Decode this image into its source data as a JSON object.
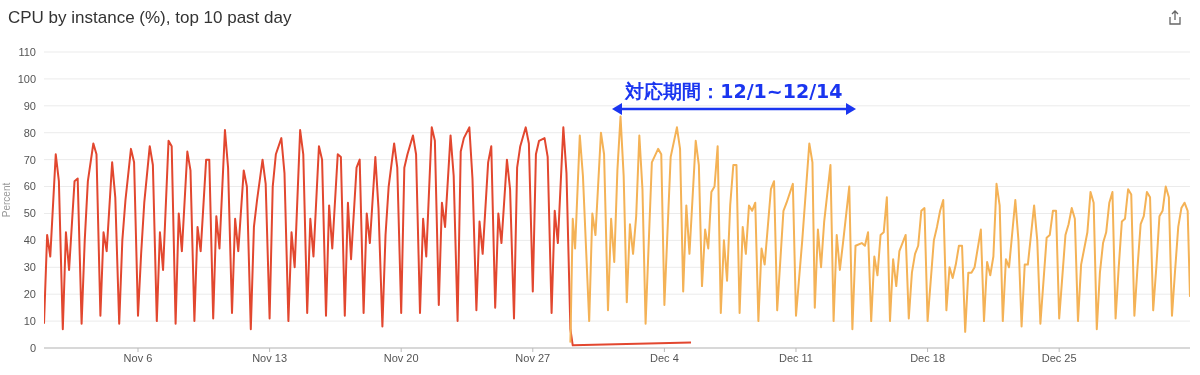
{
  "chart_data": {
    "type": "line",
    "title": "CPU by instance (%), top 10 past day",
    "ylabel": "Percent",
    "xlim": [
      "--11-01T00:00",
      "--12-31T23:00"
    ],
    "xticks": [
      {
        "value": "--11-06",
        "label": "Nov 6"
      },
      {
        "value": "--11-13",
        "label": "Nov 13"
      },
      {
        "value": "--11-20",
        "label": "Nov 20"
      },
      {
        "value": "--11-27",
        "label": "Nov 27"
      },
      {
        "value": "--12-04",
        "label": "Dec 4"
      },
      {
        "value": "--12-11",
        "label": "Dec 11"
      },
      {
        "value": "--12-18",
        "label": "Dec 18"
      },
      {
        "value": "--12-25",
        "label": "Dec 25"
      }
    ],
    "ylim": [
      0,
      110
    ],
    "yticks": [
      0,
      10,
      20,
      30,
      40,
      50,
      60,
      70,
      80,
      90,
      100,
      110
    ],
    "grid": "y",
    "marker": "none",
    "line_style": "solid",
    "annotations": [
      "対応期間：12/1~12/14"
    ],
    "series": [
      {
        "color": "#e2472f",
        "x": [
          "--11-01T00:00",
          "--11-01T04:00",
          "--11-01T08:00",
          "--11-01T15:00",
          "--11-01T19:00",
          "--11-02T00:00",
          "--11-02T04:00",
          "--11-02T08:00",
          "--11-02T15:00",
          "--11-02T19:00",
          "--11-03T00:00",
          "--11-03T04:00",
          "--11-03T08:00",
          "--11-03T15:00",
          "--11-03T19:00",
          "--11-04T00:00",
          "--11-04T04:00",
          "--11-04T08:00",
          "--11-04T15:00",
          "--11-04T19:00",
          "--11-05T00:00",
          "--11-05T04:00",
          "--11-05T08:00",
          "--11-05T15:00",
          "--11-05T19:00",
          "--11-06T00:00",
          "--11-06T04:00",
          "--11-06T08:00",
          "--11-06T15:00",
          "--11-06T19:00",
          "--11-07T00:00",
          "--11-07T04:00",
          "--11-07T08:00",
          "--11-07T15:00",
          "--11-07T19:00",
          "--11-08T00:00",
          "--11-08T04:00",
          "--11-08T08:00",
          "--11-08T15:00",
          "--11-08T19:00",
          "--11-09T00:00",
          "--11-09T04:00",
          "--11-09T08:00",
          "--11-09T15:00",
          "--11-09T19:00",
          "--11-10T00:00",
          "--11-10T04:00",
          "--11-10T08:00",
          "--11-10T15:00",
          "--11-10T19:00",
          "--11-11T00:00",
          "--11-11T04:00",
          "--11-11T08:00",
          "--11-11T15:00",
          "--11-11T19:00",
          "--11-12T00:00",
          "--11-12T04:00",
          "--11-12T08:00",
          "--11-12T15:00",
          "--11-12T19:00",
          "--11-13T00:00",
          "--11-13T04:00",
          "--11-13T08:00",
          "--11-13T15:00",
          "--11-13T19:00",
          "--11-14T00:00",
          "--11-14T04:00",
          "--11-14T08:00",
          "--11-14T15:00",
          "--11-14T19:00",
          "--11-15T00:00",
          "--11-15T04:00",
          "--11-15T08:00",
          "--11-15T15:00",
          "--11-15T19:00",
          "--11-16T00:00",
          "--11-16T04:00",
          "--11-16T08:00",
          "--11-16T15:00",
          "--11-16T19:00",
          "--11-17T00:00",
          "--11-17T04:00",
          "--11-17T08:00",
          "--11-17T15:00",
          "--11-17T19:00",
          "--11-18T00:00",
          "--11-18T04:00",
          "--11-18T08:00",
          "--11-18T15:00",
          "--11-18T19:00",
          "--11-19T00:00",
          "--11-19T04:00",
          "--11-19T08:00",
          "--11-19T15:00",
          "--11-19T19:00",
          "--11-20T00:00",
          "--11-20T04:00",
          "--11-20T08:00",
          "--11-20T15:00",
          "--11-20T19:00",
          "--11-21T00:00",
          "--11-21T04:00",
          "--11-21T08:00",
          "--11-21T15:00",
          "--11-21T19:00",
          "--11-22T00:00",
          "--11-22T04:00",
          "--11-22T08:00",
          "--11-22T15:00",
          "--11-22T19:00",
          "--11-23T00:00",
          "--11-23T04:00",
          "--11-23T08:00",
          "--11-23T15:00",
          "--11-23T19:00",
          "--11-24T00:00",
          "--11-24T04:00",
          "--11-24T08:00",
          "--11-24T15:00",
          "--11-24T19:00",
          "--11-25T00:00",
          "--11-25T04:00",
          "--11-25T08:00",
          "--11-25T15:00",
          "--11-25T19:00",
          "--11-26T00:00",
          "--11-26T04:00",
          "--11-26T08:00",
          "--11-26T15:00",
          "--11-26T19:00",
          "--11-27T00:00",
          "--11-27T04:00",
          "--11-27T08:00",
          "--11-27T15:00",
          "--11-27T19:00",
          "--11-28T00:00",
          "--11-28T04:00",
          "--11-28T08:00",
          "--11-28T15:00",
          "--11-28T19:00",
          "--11-29T00:00",
          "--11-29T03:00",
          "--12-05T10:00"
        ],
        "values": [
          9,
          42,
          34,
          72,
          62,
          7,
          43,
          29,
          62,
          63,
          9,
          40,
          62,
          76,
          72,
          12,
          43,
          36,
          69,
          56,
          9,
          40,
          55,
          74,
          69,
          12,
          35,
          54,
          75,
          68,
          10,
          43,
          29,
          77,
          75,
          9,
          50,
          36,
          73,
          66,
          10,
          45,
          36,
          70,
          70,
          11,
          49,
          37,
          81,
          67,
          13,
          48,
          36,
          66,
          60,
          7,
          45,
          55,
          70,
          61,
          11,
          60,
          72,
          78,
          65,
          10,
          43,
          30,
          81,
          72,
          13,
          48,
          34,
          75,
          70,
          12,
          53,
          37,
          72,
          71,
          12,
          54,
          33,
          67,
          70,
          13,
          50,
          39,
          71,
          52,
          8,
          42,
          60,
          76,
          67,
          13,
          67,
          72,
          79,
          72,
          13,
          48,
          34,
          82,
          77,
          16,
          54,
          45,
          79,
          64,
          10,
          73,
          78,
          82,
          63,
          14,
          47,
          35,
          69,
          75,
          15,
          50,
          39,
          70,
          59,
          11,
          67,
          75,
          82,
          76,
          21,
          72,
          77,
          78,
          71,
          13,
          51,
          39,
          82,
          65,
          7,
          1,
          2
        ]
      },
      {
        "color": "#f4b256",
        "x": [
          "--11-29T00:00",
          "--11-29T03:00",
          "--11-29T06:00",
          "--11-29T12:00",
          "--11-29T16:00",
          "--11-30T00:00",
          "--11-30T04:00",
          "--11-30T08:00",
          "--11-30T15:00",
          "--11-30T19:00",
          "--12-01T00:00",
          "--12-01T04:00",
          "--12-01T08:00",
          "--12-01T12:00",
          "--12-01T16:00",
          "--12-01T20:00",
          "--12-02T00:00",
          "--12-02T04:00",
          "--12-02T08:00",
          "--12-02T12:00",
          "--12-02T16:00",
          "--12-02T20:00",
          "--12-03T00:00",
          "--12-03T08:00",
          "--12-03T16:00",
          "--12-03T20:00",
          "--12-04T00:00",
          "--12-04T08:00",
          "--12-04T16:00",
          "--12-04T20:00",
          "--12-05T00:00",
          "--12-05T04:00",
          "--12-05T08:00",
          "--12-05T16:00",
          "--12-05T20:00",
          "--12-06T00:00",
          "--12-06T04:00",
          "--12-06T08:00",
          "--12-06T12:00",
          "--12-06T16:00",
          "--12-06T20:00",
          "--12-07T00:00",
          "--12-07T04:00",
          "--12-07T08:00",
          "--12-07T12:00",
          "--12-07T16:00",
          "--12-07T20:00",
          "--12-08T00:00",
          "--12-08T04:00",
          "--12-08T08:00",
          "--12-08T12:00",
          "--12-08T16:00",
          "--12-08T20:00",
          "--12-09T00:00",
          "--12-09T04:00",
          "--12-09T08:00",
          "--12-09T16:00",
          "--12-09T20:00",
          "--12-10T00:00",
          "--12-10T08:00",
          "--12-10T12:00",
          "--12-10T20:00",
          "--12-11T00:00",
          "--12-11T08:00",
          "--12-11T17:00",
          "--12-11T21:00",
          "--12-12T00:00",
          "--12-12T04:00",
          "--12-12T08:00",
          "--12-12T12:00",
          "--12-12T20:00",
          "--12-13T00:00",
          "--12-13T04:00",
          "--12-13T08:00",
          "--12-13T12:00",
          "--12-13T20:00",
          "--12-14T00:00",
          "--12-14T04:00",
          "--12-14T12:00",
          "--12-14T16:00",
          "--12-14T20:00",
          "--12-15T00:00",
          "--12-15T04:00",
          "--12-15T08:00",
          "--12-15T12:00",
          "--12-15T16:00",
          "--12-15T20:00",
          "--12-16T00:00",
          "--12-16T04:00",
          "--12-16T08:00",
          "--12-16T12:00",
          "--12-16T20:00",
          "--12-17T00:00",
          "--12-17T04:00",
          "--12-17T08:00",
          "--12-17T12:00",
          "--12-17T16:00",
          "--12-17T20:00",
          "--12-18T00:00",
          "--12-18T08:00",
          "--12-18T12:00",
          "--12-18T16:00",
          "--12-18T20:00",
          "--12-19T00:00",
          "--12-19T04:00",
          "--12-19T08:00",
          "--12-19T12:00",
          "--12-19T16:00",
          "--12-19T20:00",
          "--12-20T00:00",
          "--12-20T04:00",
          "--12-20T08:00",
          "--12-20T12:00",
          "--12-20T20:00",
          "--12-21T00:00",
          "--12-21T04:00",
          "--12-21T08:00",
          "--12-21T12:00",
          "--12-21T16:00",
          "--12-21T20:00",
          "--12-22T00:00",
          "--12-22T04:00",
          "--12-22T08:00",
          "--12-22T16:00",
          "--12-22T20:00",
          "--12-23T00:00",
          "--12-23T04:00",
          "--12-23T08:00",
          "--12-23T16:00",
          "--12-23T20:00",
          "--12-24T00:00",
          "--12-24T08:00",
          "--12-24T12:00",
          "--12-24T16:00",
          "--12-24T20:00",
          "--12-25T00:00",
          "--12-25T08:00",
          "--12-25T12:00",
          "--12-25T16:00",
          "--12-25T20:00",
          "--12-26T00:00",
          "--12-26T04:00",
          "--12-26T08:00",
          "--12-26T12:00",
          "--12-26T16:00",
          "--12-26T20:00",
          "--12-27T00:00",
          "--12-27T04:00",
          "--12-27T08:00",
          "--12-27T12:00",
          "--12-27T16:00",
          "--12-27T20:00",
          "--12-28T00:00",
          "--12-28T04:00",
          "--12-28T08:00",
          "--12-28T12:00",
          "--12-28T16:00",
          "--12-28T20:00",
          "--12-29T00:00",
          "--12-29T04:00",
          "--12-29T08:00",
          "--12-29T12:00",
          "--12-29T16:00",
          "--12-29T20:00",
          "--12-30T00:00",
          "--12-30T04:00",
          "--12-30T08:00",
          "--12-30T12:00",
          "--12-30T16:00",
          "--12-30T20:00",
          "--12-31T00:00",
          "--12-31T04:00",
          "--12-31T08:00",
          "--12-31T12:00",
          "--12-31T16:00",
          "--12-31T20:00",
          "--12-31T23:00"
        ],
        "values": [
          2,
          48,
          37,
          79,
          64,
          10,
          50,
          42,
          80,
          72,
          14,
          48,
          32,
          66,
          86,
          64,
          17,
          46,
          35,
          49,
          79,
          59,
          9,
          69,
          74,
          72,
          16,
          71,
          82,
          74,
          21,
          53,
          35,
          77,
          68,
          23,
          44,
          37,
          58,
          60,
          75,
          13,
          40,
          25,
          53,
          68,
          68,
          13,
          45,
          35,
          53,
          51,
          54,
          10,
          37,
          31,
          59,
          62,
          14,
          51,
          54,
          61,
          12,
          40,
          76,
          69,
          15,
          44,
          30,
          47,
          68,
          10,
          42,
          29,
          39,
          60,
          7,
          38,
          39,
          38,
          43,
          10,
          34,
          27,
          42,
          43,
          56,
          10,
          33,
          23,
          36,
          42,
          11,
          28,
          35,
          38,
          51,
          52,
          10,
          40,
          45,
          51,
          55,
          14,
          30,
          26,
          31,
          38,
          38,
          6,
          28,
          28,
          30,
          44,
          10,
          32,
          27,
          34,
          61,
          53,
          10,
          33,
          30,
          55,
          40,
          8,
          31,
          31,
          53,
          40,
          9,
          41,
          42,
          51,
          51,
          11,
          42,
          46,
          52,
          48,
          10,
          31,
          37,
          43,
          58,
          54,
          7,
          28,
          39,
          43,
          54,
          58,
          11,
          30,
          47,
          48,
          59,
          57,
          12,
          30,
          46,
          49,
          58,
          56,
          14,
          30,
          49,
          51,
          60,
          56,
          12,
          29,
          45,
          52,
          54,
          51,
          19
        ]
      }
    ]
  }
}
